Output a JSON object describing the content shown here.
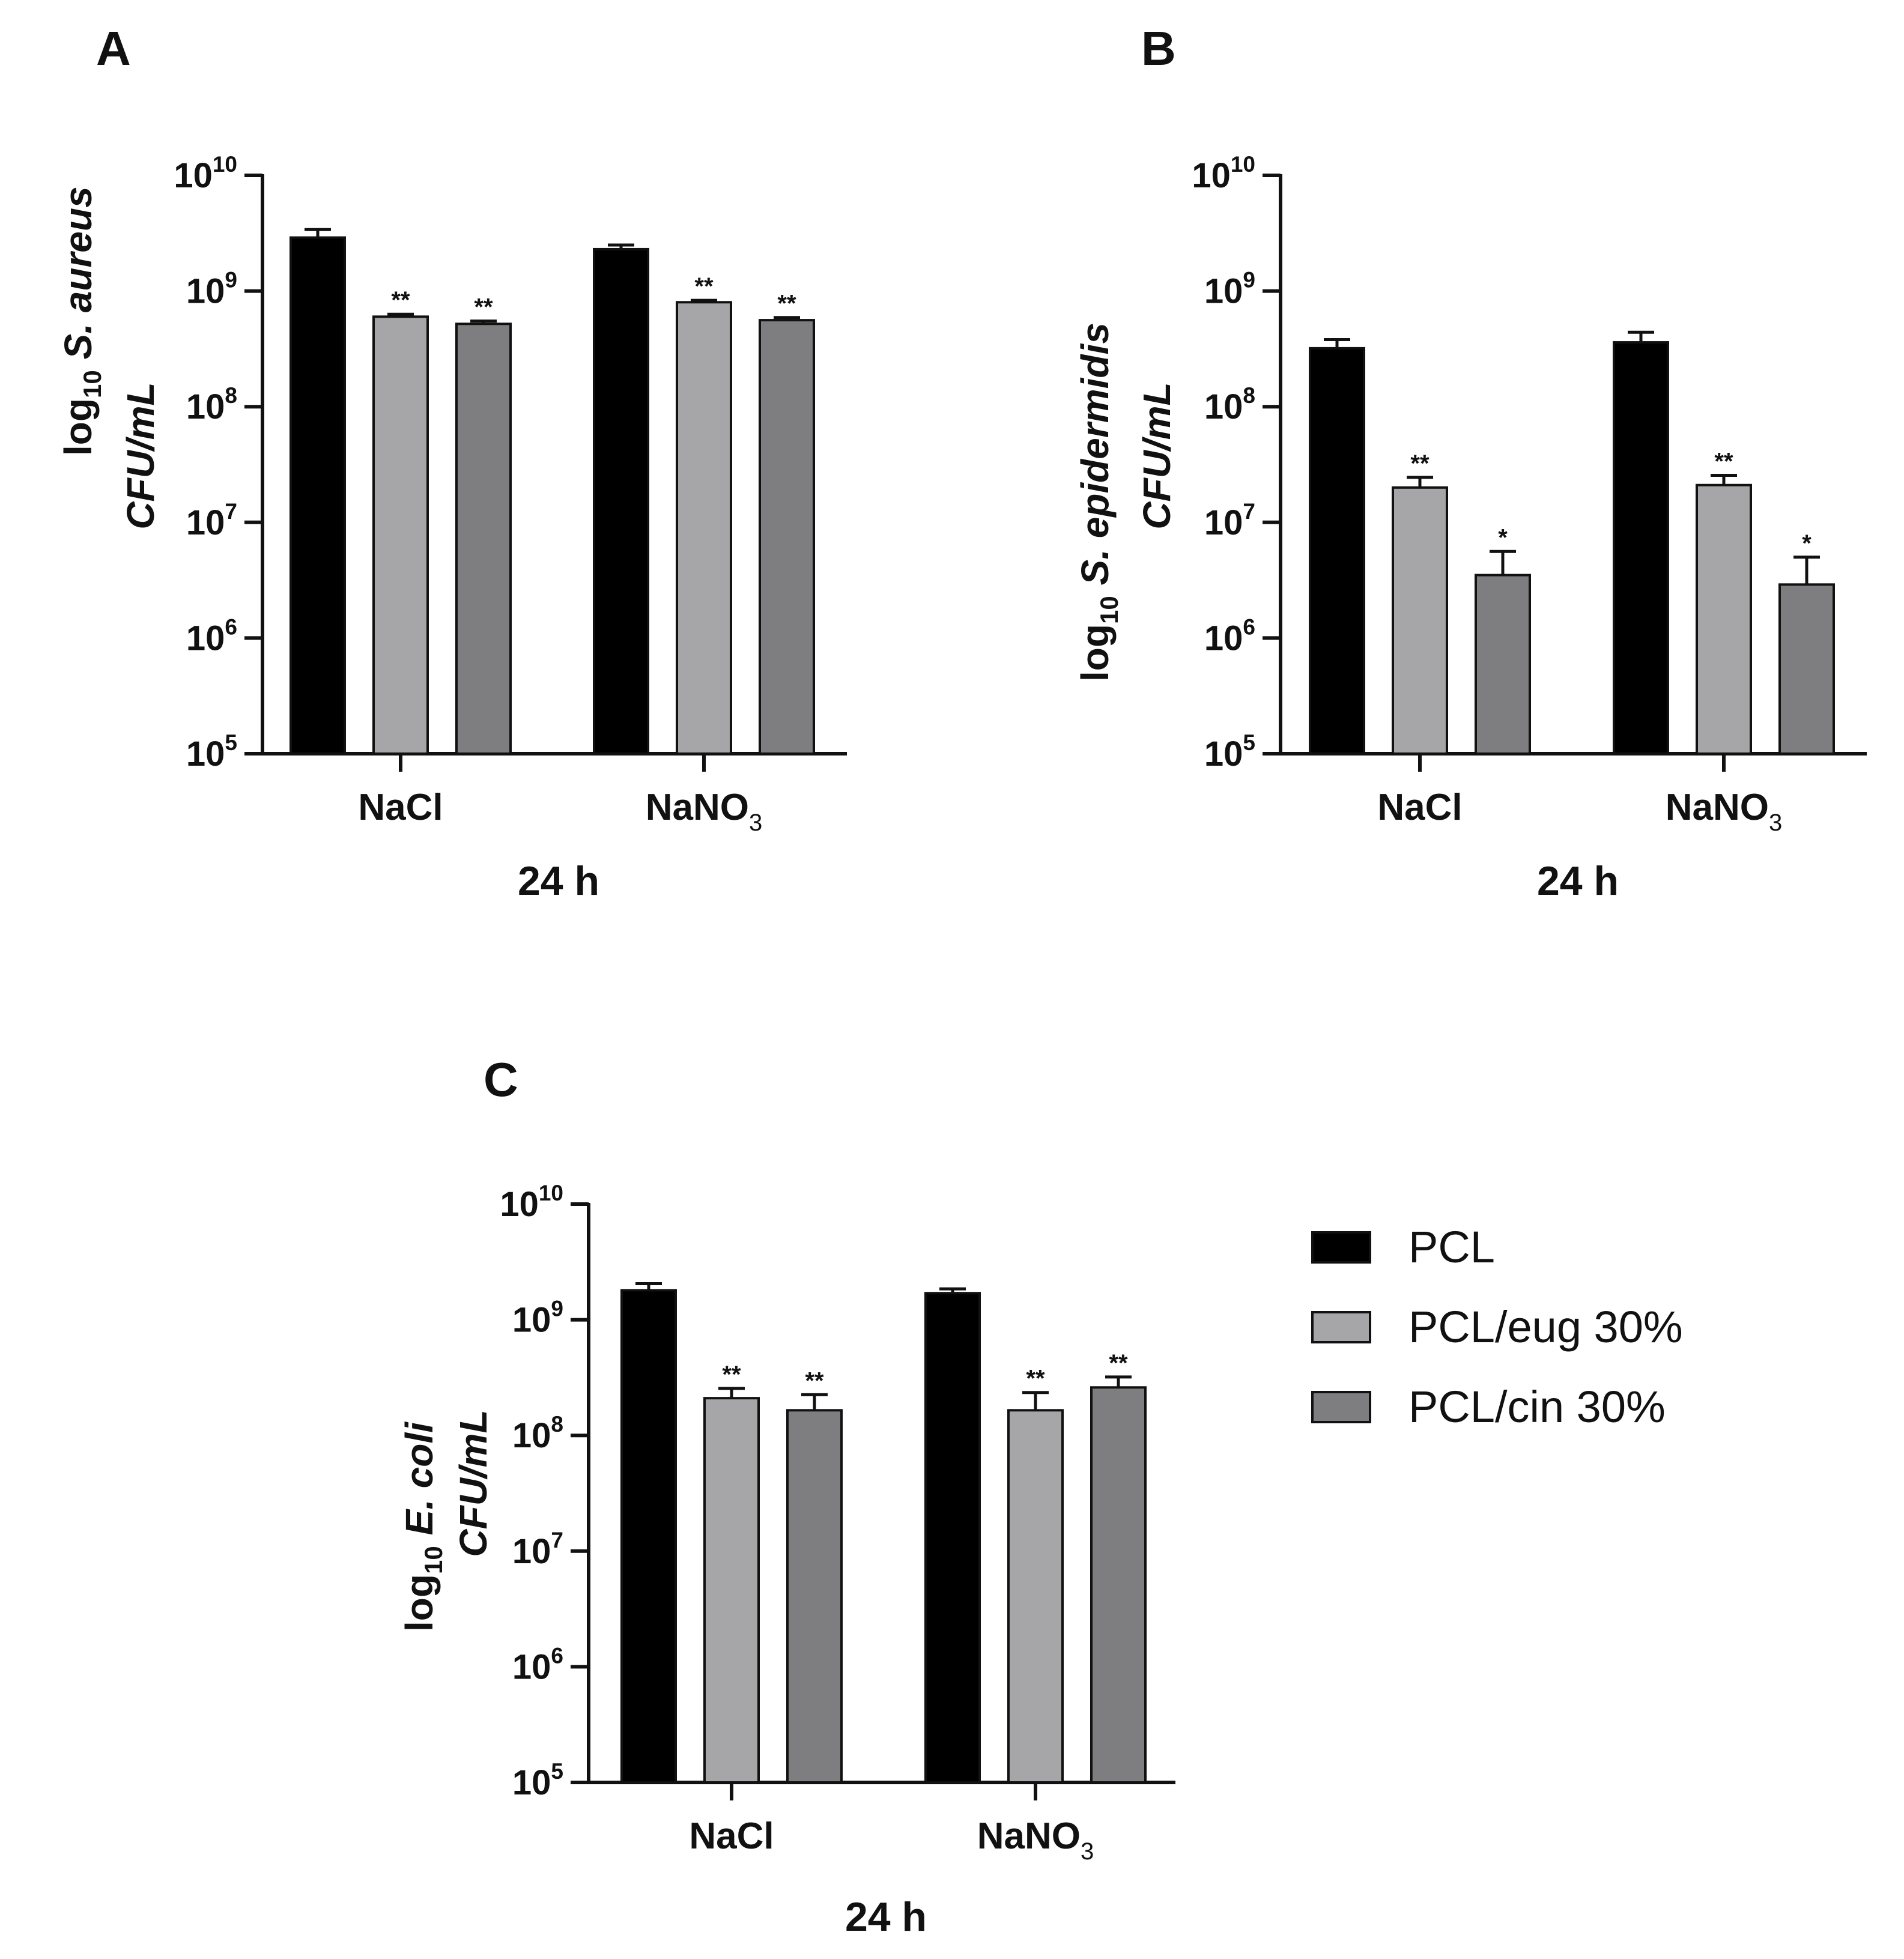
{
  "figure": {
    "legend": [
      {
        "label": "PCL",
        "color": "#000000"
      },
      {
        "label": "PCL/eug 30%",
        "color": "#a6a6a8"
      },
      {
        "label": "PCL/cin 30%",
        "color": "#7e7e80"
      }
    ]
  },
  "chart_data": [
    {
      "panel": "A",
      "type": "bar",
      "title": "",
      "ylabel_prefix": "log",
      "ylabel_sub": "10",
      "ylabel_organism": "S. aureus",
      "ylabel_units": "CFU/mL",
      "xlabel": "24 h",
      "yscale": "log",
      "ylim": [
        100000,
        10000000000
      ],
      "yticks": [
        {
          "base": "10",
          "exp": "5"
        },
        {
          "base": "10",
          "exp": "6"
        },
        {
          "base": "10",
          "exp": "7"
        },
        {
          "base": "10",
          "exp": "8"
        },
        {
          "base": "10",
          "exp": "9"
        },
        {
          "base": "10",
          "exp": "10"
        }
      ],
      "categories": [
        {
          "main": "NaCl",
          "sub": ""
        },
        {
          "main": "NaNO",
          "sub": "3"
        }
      ],
      "series": [
        {
          "name": "PCL",
          "values": [
            2900000000,
            2300000000
          ],
          "errors": [
            500000000,
            200000000
          ],
          "sig": [
            "",
            ""
          ]
        },
        {
          "name": "PCL/eug 30%",
          "values": [
            600000000,
            800000000
          ],
          "errors": [
            30000000,
            30000000
          ],
          "sig": [
            "**",
            "**"
          ]
        },
        {
          "name": "PCL/cin 30%",
          "values": [
            520000000,
            560000000
          ],
          "errors": [
            30000000,
            30000000
          ],
          "sig": [
            "**",
            "**"
          ]
        }
      ]
    },
    {
      "panel": "B",
      "type": "bar",
      "title": "",
      "ylabel_prefix": "log",
      "ylabel_sub": "10",
      "ylabel_organism": "S. epidermidis",
      "ylabel_units": "CFU/mL",
      "xlabel": "24 h",
      "yscale": "log",
      "ylim": [
        100000,
        10000000000
      ],
      "yticks": [
        {
          "base": "10",
          "exp": "5"
        },
        {
          "base": "10",
          "exp": "6"
        },
        {
          "base": "10",
          "exp": "7"
        },
        {
          "base": "10",
          "exp": "8"
        },
        {
          "base": "10",
          "exp": "9"
        },
        {
          "base": "10",
          "exp": "10"
        }
      ],
      "categories": [
        {
          "main": "NaCl",
          "sub": ""
        },
        {
          "main": "NaNO",
          "sub": "3"
        }
      ],
      "series": [
        {
          "name": "PCL",
          "values": [
            320000000,
            360000000
          ],
          "errors": [
            60000000,
            80000000
          ],
          "sig": [
            "",
            ""
          ]
        },
        {
          "name": "PCL/eug 30%",
          "values": [
            20000000,
            21000000
          ],
          "errors": [
            4500000,
            4500000
          ],
          "sig": [
            "**",
            "**"
          ]
        },
        {
          "name": "PCL/cin 30%",
          "values": [
            3500000,
            2900000
          ],
          "errors": [
            2100000,
            2100000
          ],
          "sig": [
            "*",
            "*"
          ]
        }
      ]
    },
    {
      "panel": "C",
      "type": "bar",
      "title": "",
      "ylabel_prefix": "log",
      "ylabel_sub": "10",
      "ylabel_organism": "E. coli",
      "ylabel_units": "CFU/mL",
      "xlabel": "24 h",
      "yscale": "log",
      "ylim": [
        100000,
        10000000000
      ],
      "yticks": [
        {
          "base": "10",
          "exp": "5"
        },
        {
          "base": "10",
          "exp": "6"
        },
        {
          "base": "10",
          "exp": "7"
        },
        {
          "base": "10",
          "exp": "8"
        },
        {
          "base": "10",
          "exp": "9"
        },
        {
          "base": "10",
          "exp": "10"
        }
      ],
      "categories": [
        {
          "main": "NaCl",
          "sub": ""
        },
        {
          "main": "NaNO",
          "sub": "3"
        }
      ],
      "series": [
        {
          "name": "PCL",
          "values": [
            1800000000,
            1700000000
          ],
          "errors": [
            250000000,
            150000000
          ],
          "sig": [
            "",
            ""
          ]
        },
        {
          "name": "PCL/eug 30%",
          "values": [
            210000000,
            165000000
          ],
          "errors": [
            45000000,
            70000000
          ],
          "sig": [
            "**",
            "**"
          ]
        },
        {
          "name": "PCL/cin 30%",
          "values": [
            165000000,
            260000000
          ],
          "errors": [
            60000000,
            60000000
          ],
          "sig": [
            "**",
            "**"
          ]
        }
      ]
    }
  ]
}
